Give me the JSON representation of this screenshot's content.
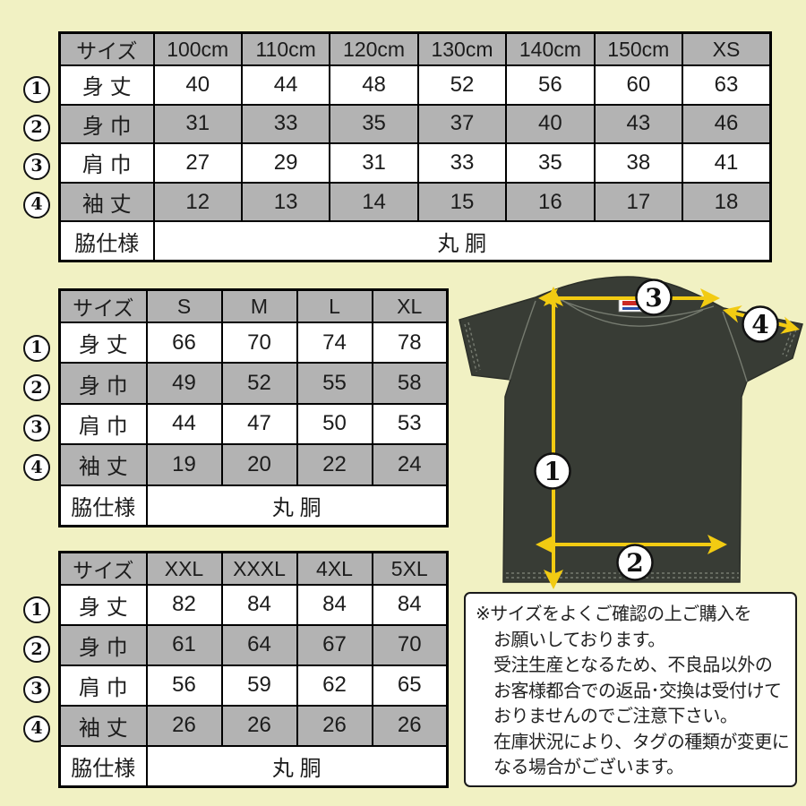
{
  "colors": {
    "background": "#f1f1c3",
    "table_fill_gray": "#b3b3b3",
    "table_fill_white": "#ffffff",
    "table_border": "#000000",
    "arrow_yellow": "#f2cb12",
    "tshirt_charcoal": "#383c35"
  },
  "tables": [
    {
      "headers": [
        "サイズ",
        "100cm",
        "110cm",
        "120cm",
        "130cm",
        "140cm",
        "150cm",
        "XS"
      ],
      "rows": [
        {
          "num": "1",
          "label": "身 丈",
          "values": [
            "40",
            "44",
            "48",
            "52",
            "56",
            "60",
            "63"
          ]
        },
        {
          "num": "2",
          "label": "身 巾",
          "values": [
            "31",
            "33",
            "35",
            "37",
            "40",
            "43",
            "46"
          ]
        },
        {
          "num": "3",
          "label": "肩 巾",
          "values": [
            "27",
            "29",
            "31",
            "33",
            "35",
            "38",
            "41"
          ]
        },
        {
          "num": "4",
          "label": "袖 丈",
          "values": [
            "12",
            "13",
            "14",
            "15",
            "16",
            "17",
            "18"
          ]
        }
      ],
      "footer": {
        "label": "脇仕様",
        "value": "丸 胴"
      }
    },
    {
      "headers": [
        "サイズ",
        "S",
        "M",
        "L",
        "XL"
      ],
      "rows": [
        {
          "num": "1",
          "label": "身 丈",
          "values": [
            "66",
            "70",
            "74",
            "78"
          ]
        },
        {
          "num": "2",
          "label": "身 巾",
          "values": [
            "49",
            "52",
            "55",
            "58"
          ]
        },
        {
          "num": "3",
          "label": "肩 巾",
          "values": [
            "44",
            "47",
            "50",
            "53"
          ]
        },
        {
          "num": "4",
          "label": "袖 丈",
          "values": [
            "19",
            "20",
            "22",
            "24"
          ]
        }
      ],
      "footer": {
        "label": "脇仕様",
        "value": "丸 胴"
      }
    },
    {
      "headers": [
        "サイズ",
        "XXL",
        "XXXL",
        "4XL",
        "5XL"
      ],
      "rows": [
        {
          "num": "1",
          "label": "身 丈",
          "values": [
            "82",
            "84",
            "84",
            "84"
          ]
        },
        {
          "num": "2",
          "label": "身 巾",
          "values": [
            "61",
            "64",
            "67",
            "70"
          ]
        },
        {
          "num": "3",
          "label": "肩 巾",
          "values": [
            "56",
            "59",
            "62",
            "65"
          ]
        },
        {
          "num": "4",
          "label": "袖 丈",
          "values": [
            "26",
            "26",
            "26",
            "26"
          ]
        }
      ],
      "footer": {
        "label": "脇仕様",
        "value": "丸 胴"
      }
    }
  ],
  "diagram": {
    "markers": [
      "1",
      "2",
      "3",
      "4"
    ]
  },
  "note": {
    "lines": [
      "※サイズをよくご確認の上ご購入を",
      "お願いしております。",
      "受注生産となるため、不良品以外の",
      "お客様都合での返品･交換は受付けて",
      "おりませんのでご注意下さい。",
      "在庫状況により、タグの種類が変更に",
      "なる場合がございます。"
    ]
  }
}
